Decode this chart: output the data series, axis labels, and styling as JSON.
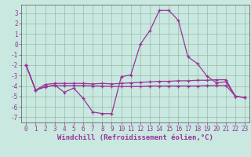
{
  "background_color": "#c8e8e0",
  "grid_color": "#99bbaa",
  "line_color": "#993399",
  "x_values": [
    0,
    1,
    2,
    3,
    4,
    5,
    6,
    7,
    8,
    9,
    10,
    11,
    12,
    13,
    14,
    15,
    16,
    17,
    18,
    19,
    20,
    21,
    22,
    23
  ],
  "line1_y": [
    -2.0,
    -4.4,
    -4.1,
    -3.9,
    -4.6,
    -4.2,
    -5.2,
    -6.5,
    -6.65,
    -6.65,
    -3.1,
    -2.95,
    0.0,
    1.3,
    3.25,
    3.25,
    2.3,
    -1.2,
    -1.85,
    -3.05,
    -3.7,
    -3.6,
    -5.0,
    -5.1
  ],
  "line2_y": [
    -2.0,
    -4.4,
    -3.85,
    -3.75,
    -3.75,
    -3.75,
    -3.75,
    -3.8,
    -3.75,
    -3.8,
    -3.75,
    -3.7,
    -3.65,
    -3.6,
    -3.55,
    -3.55,
    -3.5,
    -3.5,
    -3.45,
    -3.45,
    -3.4,
    -3.4,
    -5.0,
    -5.1
  ],
  "line3_y": [
    -2.0,
    -4.4,
    -4.05,
    -3.95,
    -3.95,
    -3.95,
    -3.95,
    -4.0,
    -4.0,
    -4.05,
    -4.05,
    -4.05,
    -4.05,
    -4.0,
    -4.0,
    -4.0,
    -4.0,
    -4.0,
    -4.0,
    -3.95,
    -3.95,
    -3.95,
    -5.0,
    -5.1
  ],
  "ylim": [
    -7.5,
    3.8
  ],
  "xlim": [
    -0.5,
    23.5
  ],
  "yticks": [
    -7,
    -6,
    -5,
    -4,
    -3,
    -2,
    -1,
    0,
    1,
    2,
    3
  ],
  "xticks": [
    0,
    1,
    2,
    3,
    4,
    5,
    6,
    7,
    8,
    9,
    10,
    11,
    12,
    13,
    14,
    15,
    16,
    17,
    18,
    19,
    20,
    21,
    22,
    23
  ],
  "xlabel": "Windchill (Refroidissement éolien,°C)",
  "tick_color": "#993399",
  "fontsize_tick": 5.5,
  "fontsize_xlabel": 6.5,
  "lw": 0.9,
  "marker_size": 3.0
}
